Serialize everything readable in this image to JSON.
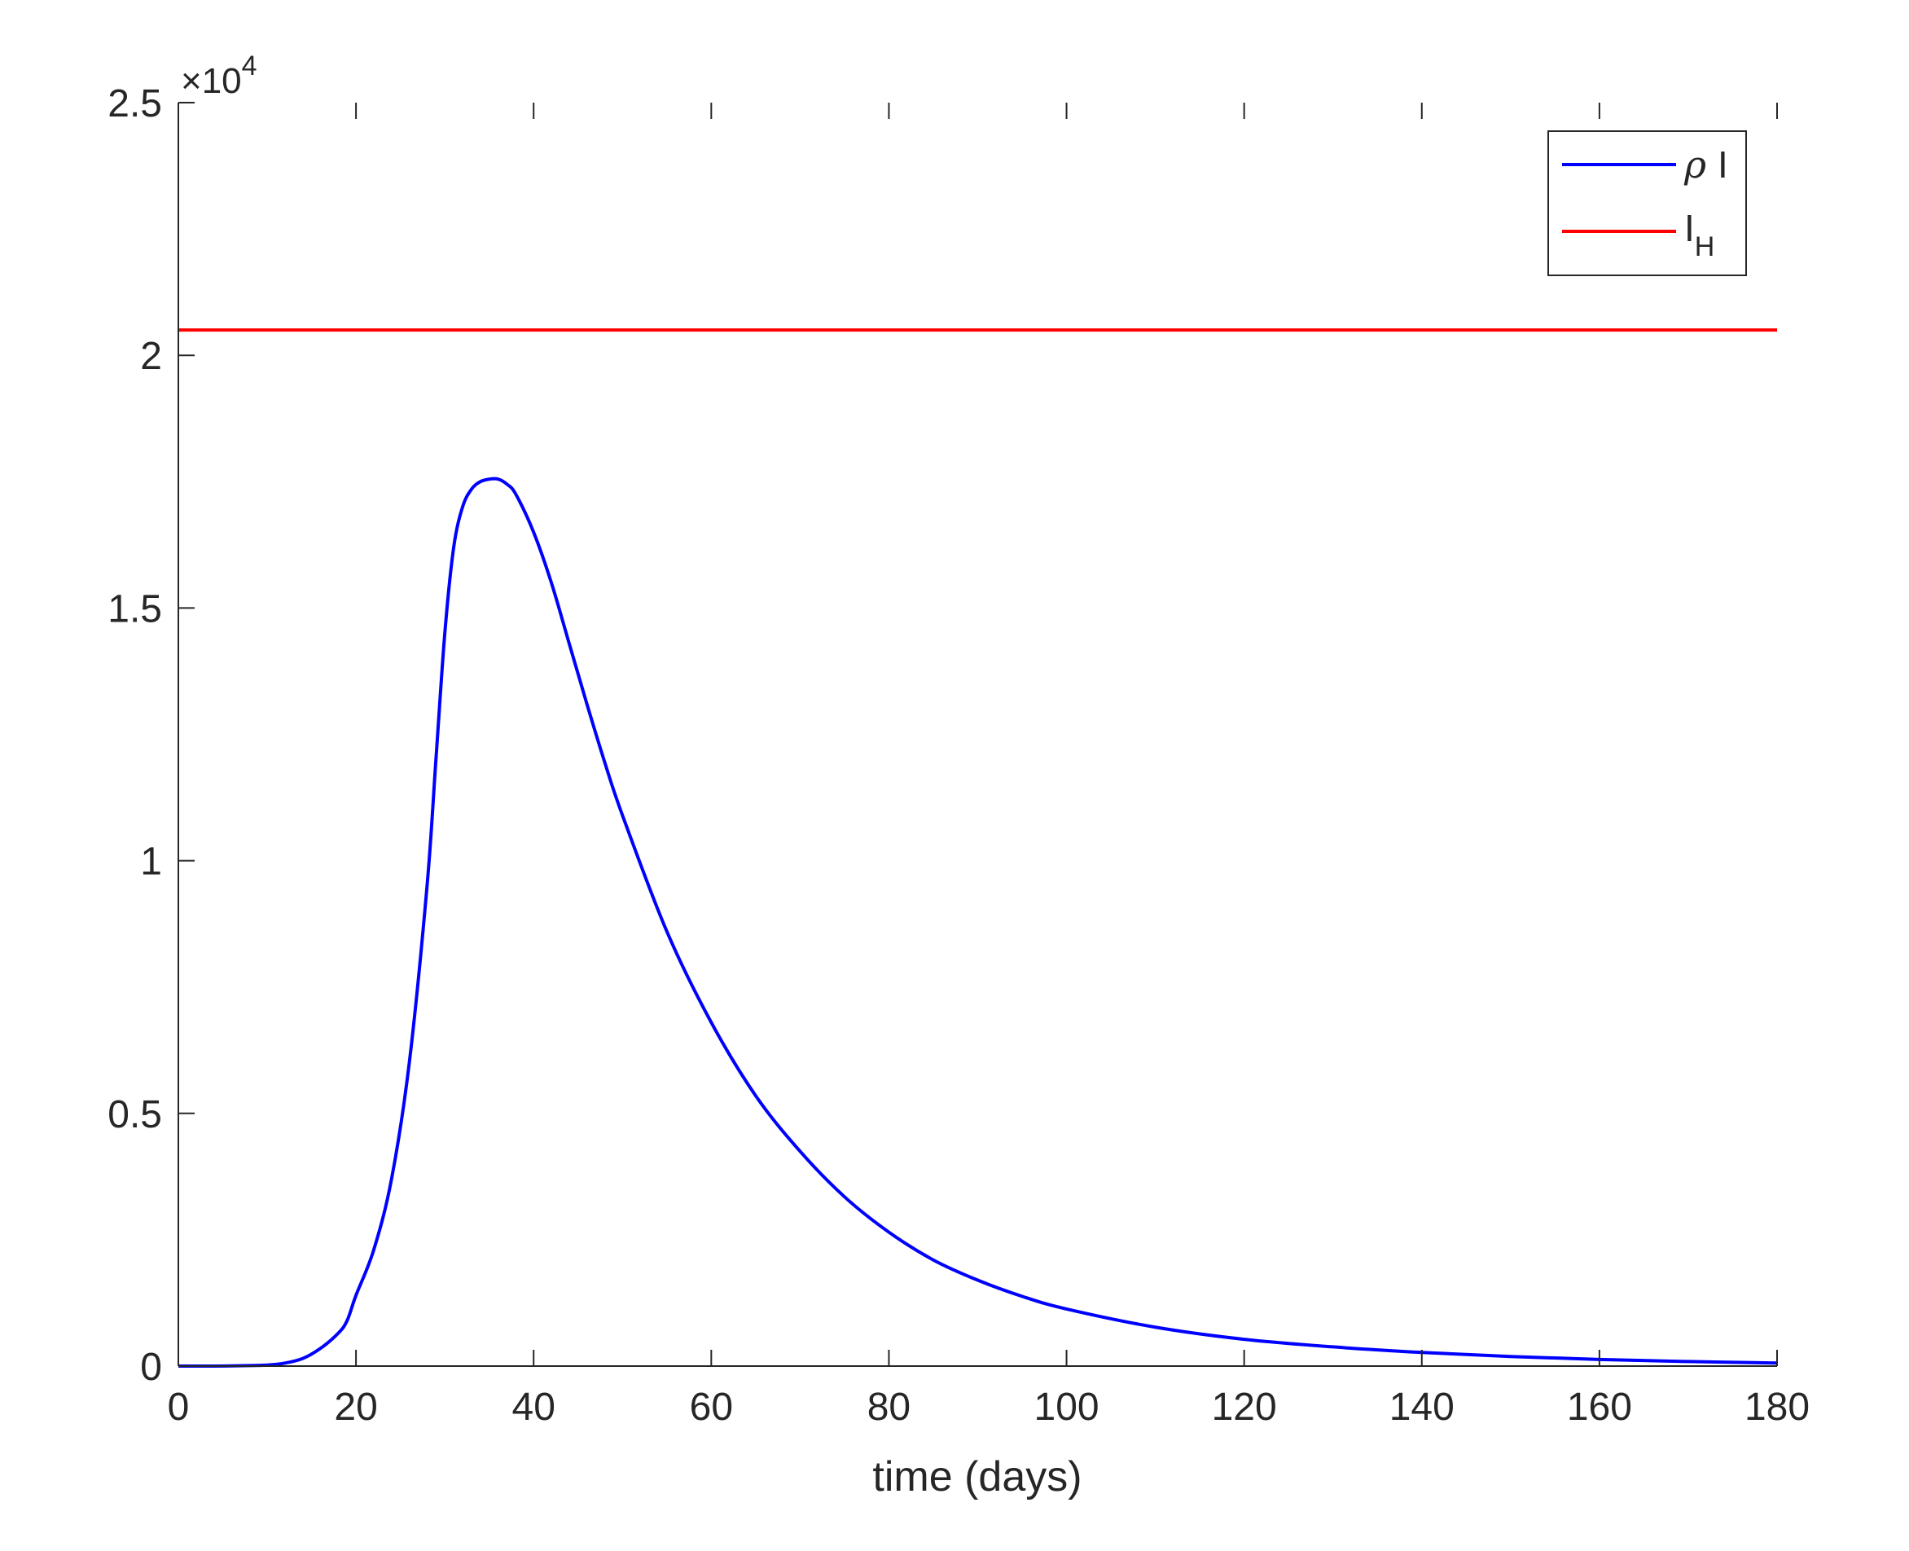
{
  "chart_data": {
    "type": "line",
    "title": "",
    "xlabel": "time (days)",
    "ylabel": "",
    "xlim": [
      0,
      180
    ],
    "ylim": [
      0,
      25000
    ],
    "y_exponent_label": "×10",
    "y_exponent_power": "4",
    "x_ticks": [
      0,
      20,
      40,
      60,
      80,
      100,
      120,
      140,
      160,
      180
    ],
    "x_tick_labels": [
      "0",
      "20",
      "40",
      "60",
      "80",
      "100",
      "120",
      "140",
      "160",
      "180"
    ],
    "y_ticks": [
      0,
      5000,
      10000,
      15000,
      20000,
      25000
    ],
    "y_tick_labels": [
      "0",
      "0.5",
      "1",
      "1.5",
      "2",
      "2.5"
    ],
    "grid": false,
    "legend_position": "top-right",
    "series": [
      {
        "name": "ρ I",
        "name_symbol": "ρ",
        "name_text": "I",
        "color": "#0000ff",
        "x": [
          0,
          4,
          8,
          10,
          12,
          14,
          16,
          18,
          19,
          20,
          22,
          24,
          26,
          28,
          29,
          30,
          31,
          32,
          33,
          34,
          35,
          36,
          37,
          38,
          40,
          42,
          44,
          46,
          48,
          50,
          55,
          60,
          65,
          70,
          75,
          80,
          85,
          90,
          95,
          100,
          110,
          120,
          130,
          140,
          150,
          160,
          170,
          180
        ],
        "y": [
          0,
          0,
          10,
          20,
          60,
          150,
          350,
          650,
          900,
          1400,
          2300,
          3700,
          6000,
          9500,
          12000,
          14500,
          16200,
          17000,
          17350,
          17500,
          17550,
          17550,
          17450,
          17250,
          16500,
          15500,
          14300,
          13100,
          11950,
          10900,
          8600,
          6800,
          5350,
          4250,
          3350,
          2650,
          2100,
          1700,
          1380,
          1130,
          770,
          530,
          380,
          270,
          190,
          130,
          90,
          60
        ]
      },
      {
        "name": "I_H",
        "name_text": "I",
        "name_sub": "H",
        "color": "#ff0000",
        "x": [
          0,
          180
        ],
        "y": [
          20500,
          20500
        ]
      }
    ]
  }
}
